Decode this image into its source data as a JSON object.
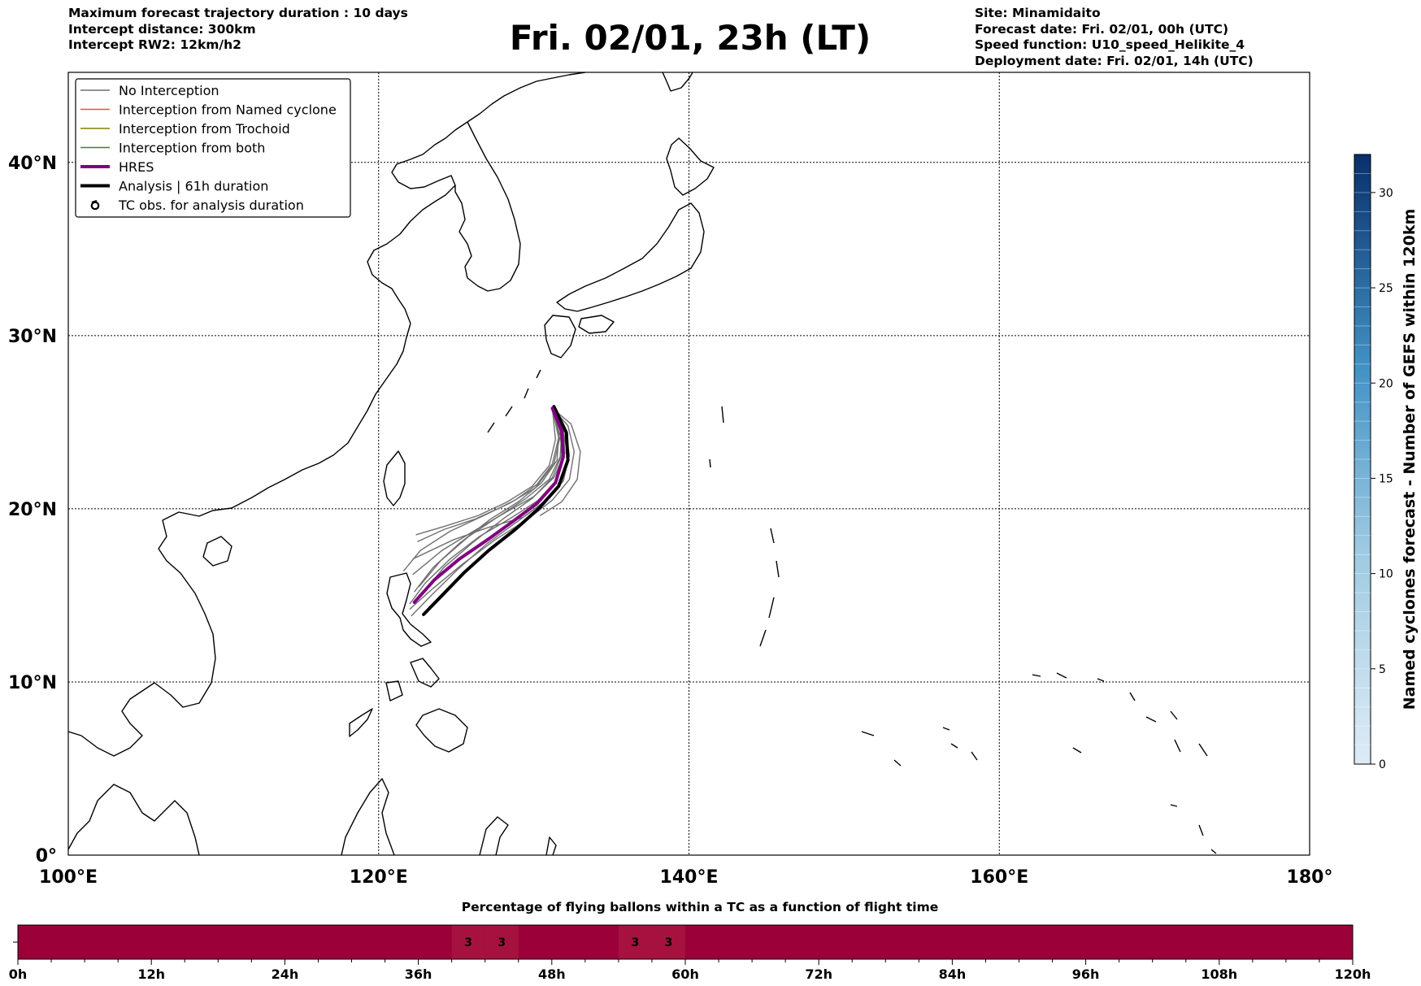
{
  "header": {
    "left_lines": [
      "Maximum forecast trajectory duration : 10 days",
      "Intercept distance: 300km",
      "Intercept RW2: 12km/h2"
    ],
    "title": "Fri. 02/01, 23h (LT)",
    "right_lines": [
      "Site: Minamidaito",
      "Forecast date: Fri. 02/01, 00h (UTC)",
      "Speed function: U10_speed_Helikite_4",
      "Deployment date: Fri. 02/01, 14h (UTC)"
    ]
  },
  "map": {
    "lon_range": [
      100,
      180
    ],
    "lat_range": [
      0,
      45.2
    ],
    "lon_ticks": [
      "100°E",
      "120°E",
      "140°E",
      "160°E",
      "180°"
    ],
    "lat_ticks": [
      "0°",
      "10°N",
      "20°N",
      "30°N",
      "40°N"
    ],
    "grid": true,
    "colors": {
      "coast": "#000000",
      "grid": "#000000",
      "no_interception": "#707070",
      "named_cyclone": "#e8552a",
      "trochoid": "#808000",
      "both": "#2e8b2e",
      "hres": "#800080",
      "analysis": "#000000"
    }
  },
  "legend": {
    "placement": "top-left",
    "items": [
      {
        "label": "No Interception",
        "style": "thin",
        "color": "#707070"
      },
      {
        "label": "Interception from Named cyclone",
        "style": "thin",
        "color": "#e8552a"
      },
      {
        "label": "Interception from Trochoid",
        "style": "thin",
        "color": "#808000"
      },
      {
        "label": "Interception from both",
        "style": "thin",
        "color": "#2e8b2e"
      },
      {
        "label": "HRES",
        "style": "thick",
        "color": "#800080"
      },
      {
        "label": "Analysis | 61h duration",
        "style": "thick",
        "color": "#000000"
      },
      {
        "label": "TC obs. for analysis duration",
        "style": "marker",
        "color": "#000000",
        "marker_icon": "cyclone-icon"
      }
    ]
  },
  "trajectories": {
    "start": [
      131.2,
      25.8
    ],
    "hres": [
      [
        131.2,
        25.8
      ],
      [
        131.8,
        24.5
      ],
      [
        131.9,
        23.0
      ],
      [
        131.4,
        21.5
      ],
      [
        130.2,
        20.3
      ],
      [
        128.7,
        19.3
      ],
      [
        127.0,
        18.2
      ],
      [
        125.2,
        17.1
      ],
      [
        123.6,
        15.9
      ],
      [
        122.3,
        14.6
      ]
    ],
    "analysis": [
      [
        131.3,
        25.9
      ],
      [
        132.1,
        24.4
      ],
      [
        132.2,
        22.8
      ],
      [
        131.6,
        21.3
      ],
      [
        130.3,
        20.0
      ],
      [
        128.8,
        18.8
      ],
      [
        127.1,
        17.6
      ],
      [
        125.5,
        16.3
      ],
      [
        124.2,
        15.1
      ],
      [
        122.9,
        13.9
      ]
    ],
    "ensemble": [
      [
        [
          131.2,
          25.8
        ],
        [
          131.7,
          24.2
        ],
        [
          131.3,
          22.6
        ],
        [
          130.1,
          21.2
        ],
        [
          128.4,
          20.3
        ],
        [
          126.2,
          19.4
        ],
        [
          124.2,
          18.8
        ],
        [
          122.5,
          18.1
        ]
      ],
      [
        [
          131.2,
          25.8
        ],
        [
          131.9,
          24.5
        ],
        [
          132.2,
          23.0
        ],
        [
          131.9,
          21.6
        ],
        [
          130.8,
          20.5
        ],
        [
          129.3,
          19.5
        ],
        [
          127.0,
          18.9
        ],
        [
          124.8,
          18.2
        ],
        [
          122.2,
          17.1
        ]
      ],
      [
        [
          131.2,
          25.8
        ],
        [
          131.6,
          24.3
        ],
        [
          131.5,
          22.8
        ],
        [
          130.5,
          21.5
        ],
        [
          129.0,
          20.4
        ],
        [
          127.2,
          19.4
        ],
        [
          125.2,
          18.0
        ],
        [
          123.5,
          16.6
        ],
        [
          122.3,
          15.2
        ]
      ],
      [
        [
          131.2,
          25.8
        ],
        [
          131.8,
          24.4
        ],
        [
          131.7,
          23.0
        ],
        [
          131.0,
          21.7
        ],
        [
          129.5,
          20.6
        ],
        [
          127.8,
          19.6
        ],
        [
          125.8,
          18.4
        ],
        [
          124.0,
          17.0
        ],
        [
          122.6,
          15.5
        ]
      ],
      [
        [
          131.2,
          25.8
        ],
        [
          131.9,
          24.6
        ],
        [
          132.0,
          23.2
        ],
        [
          131.3,
          21.8
        ],
        [
          130.0,
          20.7
        ],
        [
          128.2,
          19.8
        ],
        [
          126.1,
          18.7
        ],
        [
          124.1,
          17.6
        ],
        [
          122.2,
          16.2
        ]
      ],
      [
        [
          131.2,
          25.8
        ],
        [
          132.2,
          24.8
        ],
        [
          132.6,
          23.3
        ],
        [
          132.3,
          21.7
        ],
        [
          131.2,
          20.5
        ],
        [
          129.6,
          19.4
        ],
        [
          127.5,
          18.2
        ],
        [
          125.4,
          16.8
        ],
        [
          123.5,
          15.4
        ],
        [
          122.0,
          14.2
        ]
      ],
      [
        [
          131.2,
          25.8
        ],
        [
          131.4,
          24.0
        ],
        [
          131.0,
          22.5
        ],
        [
          129.9,
          21.3
        ],
        [
          128.3,
          20.4
        ],
        [
          126.4,
          19.6
        ],
        [
          124.3,
          19.0
        ],
        [
          122.4,
          18.5
        ]
      ],
      [
        [
          131.2,
          25.8
        ],
        [
          131.7,
          24.5
        ],
        [
          131.8,
          23.1
        ],
        [
          131.2,
          21.8
        ],
        [
          129.9,
          20.6
        ],
        [
          128.0,
          19.4
        ],
        [
          126.0,
          18.0
        ],
        [
          124.2,
          16.6
        ],
        [
          122.8,
          15.1
        ]
      ],
      [
        [
          131.2,
          25.8
        ],
        [
          132.0,
          24.6
        ],
        [
          132.3,
          23.1
        ],
        [
          131.9,
          21.6
        ],
        [
          130.7,
          20.4
        ],
        [
          129.0,
          19.3
        ],
        [
          127.0,
          18.0
        ],
        [
          125.1,
          16.5
        ],
        [
          123.4,
          15.0
        ],
        [
          122.1,
          13.8
        ]
      ],
      [
        [
          131.2,
          25.8
        ],
        [
          131.6,
          24.1
        ],
        [
          131.2,
          22.6
        ],
        [
          130.2,
          21.4
        ],
        [
          128.8,
          20.5
        ],
        [
          127.0,
          19.7
        ],
        [
          124.6,
          18.7
        ],
        [
          122.7,
          17.6
        ],
        [
          121.6,
          16.4
        ]
      ],
      [
        [
          131.2,
          25.8
        ],
        [
          131.8,
          24.3
        ],
        [
          131.9,
          22.9
        ],
        [
          131.4,
          21.6
        ],
        [
          130.3,
          20.5
        ],
        [
          128.6,
          19.5
        ],
        [
          126.5,
          18.4
        ],
        [
          124.6,
          17.1
        ],
        [
          123.0,
          15.7
        ],
        [
          122.0,
          14.5
        ]
      ],
      [
        [
          131.2,
          25.8
        ],
        [
          132.4,
          24.9
        ],
        [
          133.0,
          23.3
        ],
        [
          132.8,
          21.7
        ],
        [
          131.8,
          20.4
        ],
        [
          130.4,
          19.6
        ]
      ]
    ]
  },
  "colorbar": {
    "label": "Named cyclones forecast - Number of GEFS within 120km",
    "min": 0,
    "max": 32,
    "ticks": [
      "0",
      "5",
      "10",
      "15",
      "20",
      "25",
      "30"
    ]
  },
  "flight_bar": {
    "title": "Percentage of flying ballons within a TC as a function of flight time",
    "hours_max": 120,
    "tick_labels": [
      "0h",
      "12h",
      "24h",
      "36h",
      "48h",
      "60h",
      "72h",
      "84h",
      "96h",
      "108h",
      "120h"
    ],
    "base_color": "#9b0038",
    "highlight_color": "#a6123f",
    "cells": [
      {
        "start_h": 39,
        "end_h": 42,
        "label": "3",
        "value": 3
      },
      {
        "start_h": 42,
        "end_h": 45,
        "label": "3",
        "value": 3
      },
      {
        "start_h": 54,
        "end_h": 57,
        "label": "3",
        "value": 3
      },
      {
        "start_h": 57,
        "end_h": 60,
        "label": "3",
        "value": 3
      }
    ]
  }
}
